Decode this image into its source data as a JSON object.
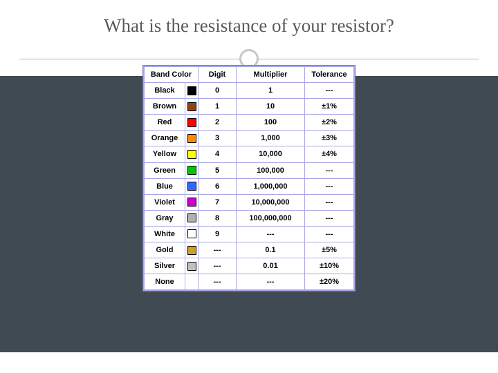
{
  "title": "What is the resistance of your resistor?",
  "colors": {
    "title_text": "#5a5a5a",
    "divider": "#b0b0b0",
    "ring": "#c7c7c7",
    "dark_band": "#3f4a52",
    "table_frame": "#a8a8e8",
    "cell_bg": "#ffffff"
  },
  "table": {
    "headers": {
      "band_color": "Band Color",
      "digit": "Digit",
      "multiplier": "Multiplier",
      "tolerance": "Tolerance"
    },
    "column_widths": {
      "band_color": 58,
      "swatch": 18,
      "digit": 54,
      "multiplier": 98,
      "tolerance": 70
    },
    "font_size": 11,
    "font_weight": "bold",
    "rows": [
      {
        "name": "Black",
        "swatch": "#000000",
        "digit": "0",
        "multiplier": "1",
        "tolerance": "---"
      },
      {
        "name": "Brown",
        "swatch": "#8b4513",
        "digit": "1",
        "multiplier": "10",
        "tolerance": "±1%"
      },
      {
        "name": "Red",
        "swatch": "#ff0000",
        "digit": "2",
        "multiplier": "100",
        "tolerance": "±2%"
      },
      {
        "name": "Orange",
        "swatch": "#ff8c00",
        "digit": "3",
        "multiplier": "1,000",
        "tolerance": "±3%"
      },
      {
        "name": "Yellow",
        "swatch": "#ffff00",
        "digit": "4",
        "multiplier": "10,000",
        "tolerance": "±4%"
      },
      {
        "name": "Green",
        "swatch": "#00c800",
        "digit": "5",
        "multiplier": "100,000",
        "tolerance": "---"
      },
      {
        "name": "Blue",
        "swatch": "#3366ff",
        "digit": "6",
        "multiplier": "1,000,000",
        "tolerance": "---"
      },
      {
        "name": "Violet",
        "swatch": "#cc00cc",
        "digit": "7",
        "multiplier": "10,000,000",
        "tolerance": "---"
      },
      {
        "name": "Gray",
        "swatch": "#b0b0b0",
        "digit": "8",
        "multiplier": "100,000,000",
        "tolerance": "---"
      },
      {
        "name": "White",
        "swatch": "#ffffff",
        "digit": "9",
        "multiplier": "---",
        "tolerance": "---"
      },
      {
        "name": "Gold",
        "swatch": "#c9a227",
        "digit": "---",
        "multiplier": "0.1",
        "tolerance": "±5%"
      },
      {
        "name": "Silver",
        "swatch": "#c0c0c0",
        "digit": "---",
        "multiplier": "0.01",
        "tolerance": "±10%"
      },
      {
        "name": "None",
        "swatch": null,
        "digit": "---",
        "multiplier": "---",
        "tolerance": "±20%"
      }
    ]
  }
}
